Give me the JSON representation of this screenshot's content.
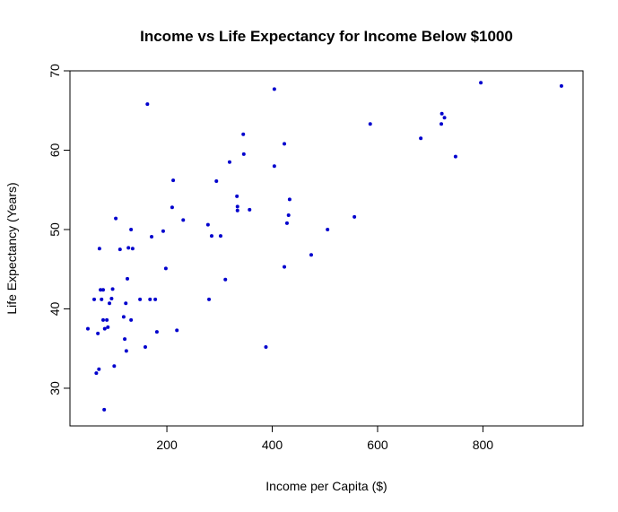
{
  "chart_data": {
    "type": "scatter",
    "title": "Income vs Life Expectancy for Income Below $1000",
    "x_label": "Income per Capita ($)",
    "y_label": "Life Expectancy (Years)",
    "color": "#0000cd",
    "x": [
      50,
      62,
      66,
      71,
      69,
      72,
      76,
      74,
      79,
      81,
      79,
      82,
      86,
      88,
      91,
      95,
      97,
      100,
      103,
      111,
      118,
      120,
      122,
      123,
      125,
      127,
      132,
      135,
      132,
      149,
      163,
      159,
      168,
      171,
      178,
      181,
      193,
      198,
      210,
      212,
      219,
      231,
      278,
      280,
      285,
      294,
      302,
      311,
      319,
      333,
      334,
      334,
      345,
      346,
      357,
      388,
      404,
      404,
      423,
      423,
      428,
      431,
      433,
      474,
      505,
      556,
      586,
      682,
      721,
      722,
      727,
      748,
      796,
      949
    ],
    "y": [
      37.5,
      41.2,
      31.9,
      32.4,
      36.9,
      47.6,
      41.2,
      42.4,
      42.4,
      27.3,
      38.6,
      37.5,
      38.6,
      37.7,
      40.7,
      41.3,
      42.5,
      32.8,
      51.4,
      47.5,
      39.0,
      36.2,
      40.7,
      34.7,
      43.8,
      47.7,
      50.0,
      47.6,
      38.6,
      41.2,
      65.8,
      35.2,
      41.2,
      49.1,
      41.2,
      37.1,
      49.8,
      45.1,
      52.8,
      56.2,
      37.3,
      51.2,
      50.6,
      41.2,
      49.2,
      56.1,
      49.2,
      43.7,
      58.5,
      54.2,
      52.9,
      52.4,
      62.0,
      59.5,
      52.5,
      35.2,
      67.7,
      58.0,
      60.8,
      45.3,
      50.8,
      51.8,
      53.8,
      46.8,
      50.0,
      51.6,
      63.3,
      61.5,
      63.3,
      64.6,
      64.1,
      59.2,
      68.5,
      68.1
    ],
    "xlim": [
      16,
      990
    ],
    "ylim": [
      25.25,
      70
    ],
    "xticks": [
      200,
      400,
      600,
      800
    ],
    "yticks": [
      30,
      40,
      50,
      60,
      70
    ]
  }
}
